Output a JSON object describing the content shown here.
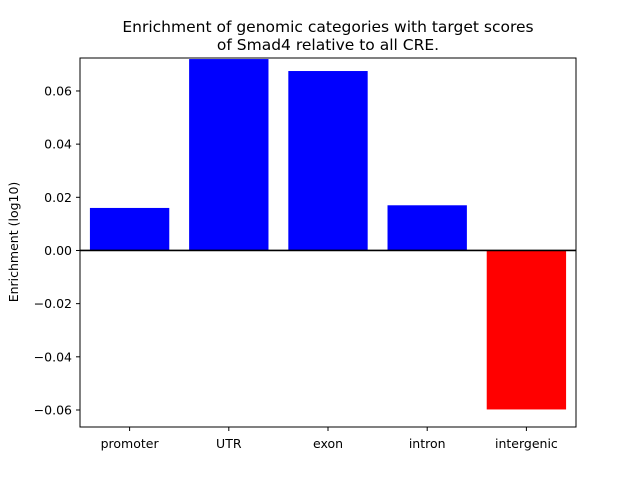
{
  "chart_data": {
    "type": "bar",
    "title_lines": [
      "Enrichment of genomic categories with target scores",
      "of Smad4 relative to all CRE."
    ],
    "xlabel": "",
    "ylabel": "Enrichment (log10)",
    "categories": [
      "promoter",
      "UTR",
      "exon",
      "intron",
      "intergenic"
    ],
    "values": [
      0.016,
      0.072,
      0.0675,
      0.017,
      -0.0598
    ],
    "bar_colors": [
      "#0000ff",
      "#0000ff",
      "#0000ff",
      "#0000ff",
      "#ff0000"
    ],
    "ylim": [
      -0.0664,
      0.0724
    ],
    "yticks": [
      -0.06,
      -0.04,
      -0.02,
      0.0,
      0.02,
      0.04,
      0.06
    ],
    "ytick_labels": [
      "−0.06",
      "−0.04",
      "−0.02",
      "0.00",
      "0.02",
      "0.04",
      "0.06"
    ],
    "zero_line": true,
    "grid": false
  }
}
